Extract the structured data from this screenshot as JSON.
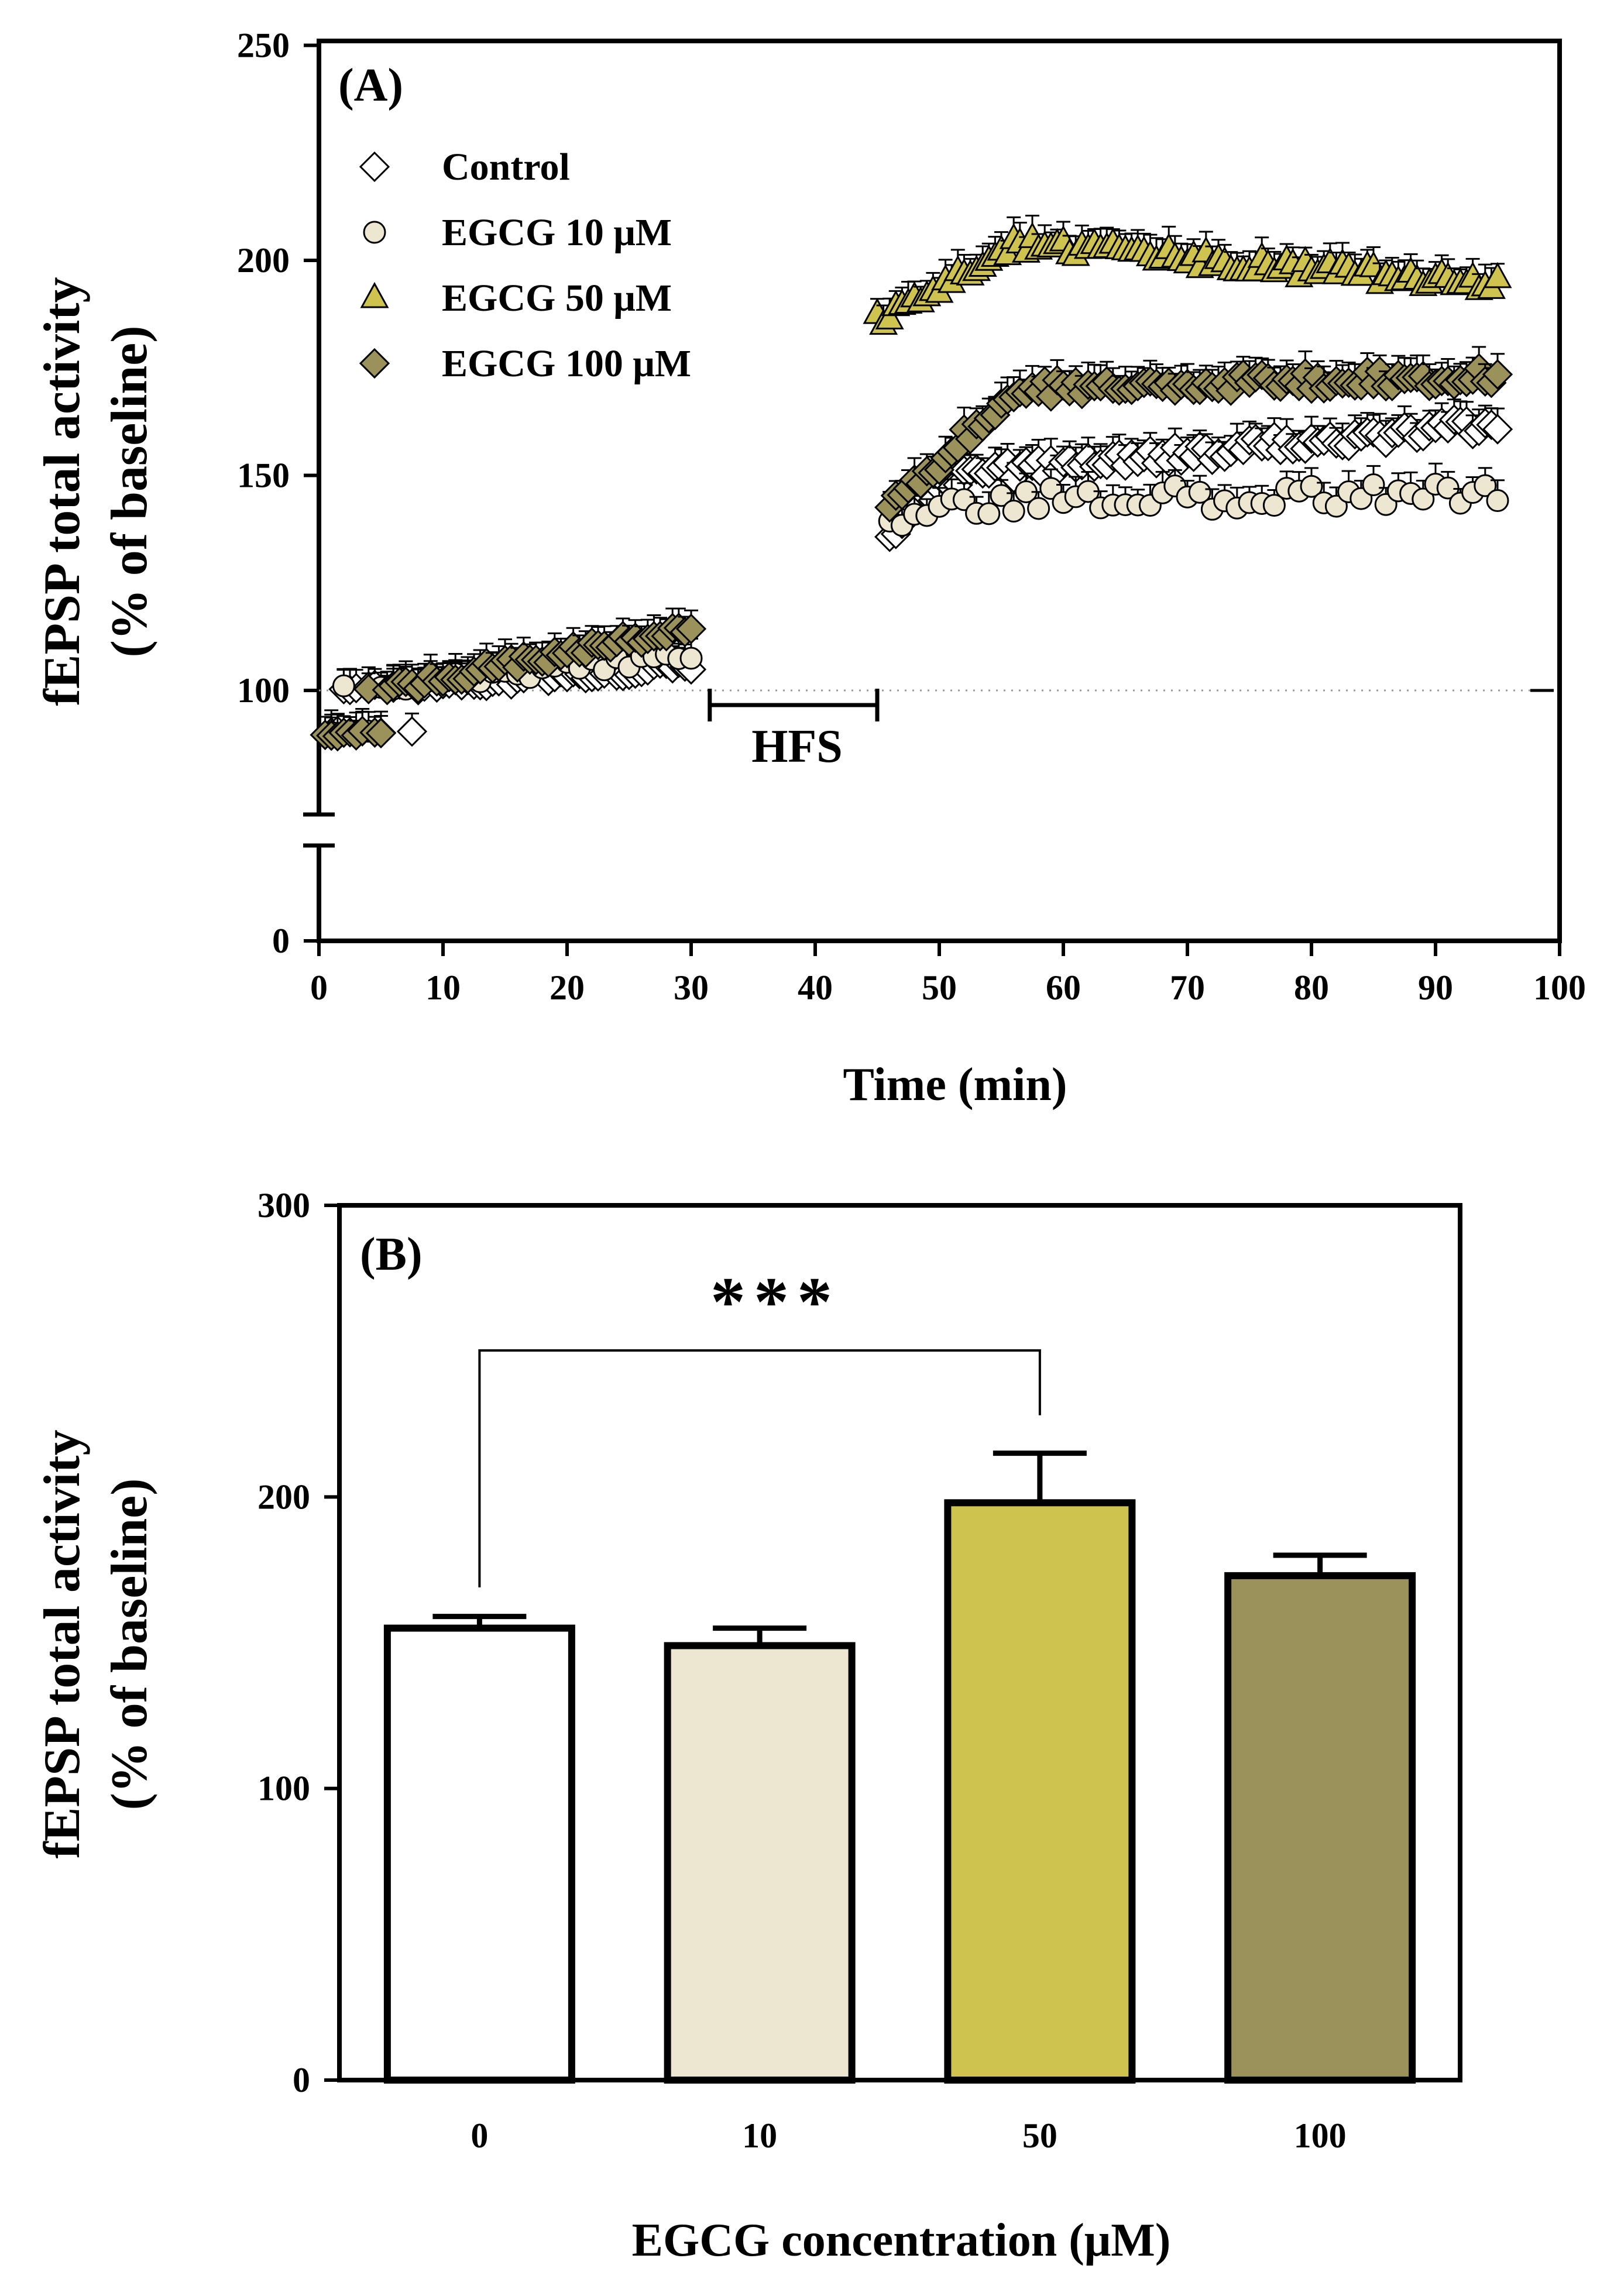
{
  "chart_data": [
    {
      "panel": "(A)",
      "type": "scatter",
      "xlabel": "Time (min)",
      "ylabel_line1": "fEPSP total activity",
      "ylabel_line2": "(% of baseline)",
      "xlim": [
        0,
        100
      ],
      "ylim": [
        0,
        250
      ],
      "x_ticks": [
        0,
        10,
        20,
        30,
        40,
        50,
        60,
        70,
        80,
        90,
        100
      ],
      "y_ticks": [
        0,
        100,
        150,
        200,
        250
      ],
      "y_axis_break": true,
      "baseline_value": 100,
      "hfs": {
        "label": "HFS",
        "start": 31.5,
        "end": 45
      },
      "legend_position": "top-left",
      "series": [
        {
          "name": "Control",
          "marker": "diamond",
          "color": "#ffffff",
          "pre": {
            "x_start": 1,
            "x_step": 0.5,
            "y_start": 99,
            "y_end": 106,
            "jitter": 1.5
          },
          "post": {
            "x_start": 46,
            "x_step": 0.5,
            "y_start": 137,
            "y_mid_x": 52,
            "y_mid": 150,
            "y_end": 162,
            "jitter": 2
          }
        },
        {
          "name": "EGCG 10 μM",
          "marker": "circle",
          "color": "#ede6d1",
          "pre": {
            "x_start": 1,
            "x_step": 1,
            "y_start": 100,
            "y_end": 108,
            "jitter": 1.5
          },
          "post": {
            "x_start": 46,
            "x_step": 1,
            "y_start": 140,
            "y_mid_x": 52,
            "y_mid": 144,
            "y_end": 146,
            "jitter": 3
          }
        },
        {
          "name": "EGCG 50 μM",
          "marker": "triangle",
          "color": "#cfc350",
          "pre": null,
          "post": {
            "x_start": 45,
            "x_step": 0.5,
            "y_start": 186,
            "y_mid_x": 56,
            "y_mid": 204,
            "y_end": 194,
            "jitter": 2
          }
        },
        {
          "name": "EGCG 100 μM",
          "marker": "diamond",
          "color": "#9a915b",
          "pre": {
            "x_start": 0.5,
            "x_step": 0.5,
            "y_start": 97,
            "y_end": 115,
            "jitter": 1.5
          },
          "post": {
            "x_start": 46,
            "x_step": 0.5,
            "y_start": 142,
            "y_mid_x": 56,
            "y_mid": 170,
            "y_end": 173,
            "jitter": 2
          }
        }
      ]
    },
    {
      "panel": "(B)",
      "type": "bar",
      "xlabel": "EGCG concentration (μM)",
      "ylabel_line1": "fEPSP total activity",
      "ylabel_line2": "(% of baseline)",
      "categories": [
        "0",
        "10",
        "50",
        "100"
      ],
      "values": [
        155,
        149,
        198,
        173
      ],
      "errors": [
        4,
        6,
        17,
        7
      ],
      "colors": [
        "#ffffff",
        "#ede6d1",
        "#cfc350",
        "#9a915b"
      ],
      "ylim": [
        0,
        300
      ],
      "y_ticks": [
        0,
        100,
        200,
        300
      ],
      "significance": {
        "from": 0,
        "to": 2,
        "label": "***"
      }
    }
  ]
}
